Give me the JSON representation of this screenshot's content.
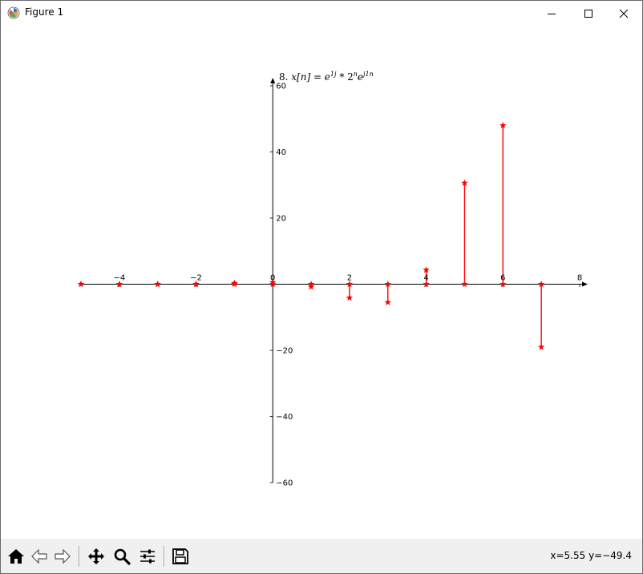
{
  "window": {
    "title": "Figure 1",
    "icon": "matplotlib-icon"
  },
  "controls": {
    "minimize_icon": "minimize-icon",
    "maximize_icon": "maximize-icon",
    "close_icon": "close-icon"
  },
  "toolbar": {
    "buttons": [
      {
        "name": "home-icon"
      },
      {
        "name": "back-icon"
      },
      {
        "name": "forward-icon"
      },
      {
        "name": "pan-icon"
      },
      {
        "name": "zoom-icon"
      },
      {
        "name": "configure-subplots-icon"
      },
      {
        "name": "save-icon"
      }
    ],
    "coords": "x=5.55 y=−49.4"
  },
  "chart_data": {
    "type": "stem",
    "title": "8. x[n] = e^{1j} * 2^n e^{j1n}",
    "title_prefix": "8. ",
    "title_math": "x[n] = e",
    "title_exp1": "1j",
    "title_mid": " * 2",
    "title_exp2": "n",
    "title_e": "e",
    "title_exp3": "j1n",
    "xlim": [
      -5,
      8
    ],
    "ylim": [
      -60,
      60
    ],
    "x_ticks": [
      "−4",
      "−2",
      "0",
      "2",
      "4",
      "6",
      "8"
    ],
    "x_tick_values": [
      -4,
      -2,
      0,
      2,
      4,
      6,
      8
    ],
    "y_ticks": [
      "60",
      "40",
      "20",
      "−20",
      "−40",
      "−60"
    ],
    "y_tick_values": [
      60,
      40,
      20,
      -20,
      -40,
      -60
    ],
    "grid": false,
    "color": "#ff0000",
    "series": [
      {
        "x": [
          -5,
          -4,
          -3,
          -2,
          -1,
          0,
          1,
          2,
          3,
          4,
          5,
          6,
          7
        ],
        "y": [
          0.0,
          -0.03,
          -0.04,
          0.03,
          0.3,
          0.54,
          -0.8,
          -4.1,
          -5.5,
          4.3,
          30.6,
          48.0,
          -19.0
        ]
      },
      {
        "x": [
          -5,
          -4,
          -3,
          -2,
          -1,
          0,
          1,
          2,
          3,
          4,
          5,
          6,
          7
        ],
        "y": [
          0.0,
          0.0,
          0.0,
          0.0,
          0.0,
          0.0,
          0.0,
          0.0,
          0.0,
          0.0,
          0.0,
          0.0,
          0.0
        ]
      }
    ]
  }
}
